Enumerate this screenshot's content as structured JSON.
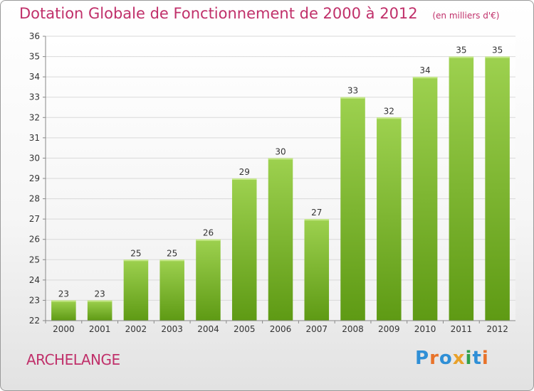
{
  "header": {
    "title": "Dotation Globale de Fonctionnement de 2000 à 2012",
    "unit": "(en milliers d'€)"
  },
  "commune": "ARCHELANGE",
  "logo": {
    "letters": [
      "P",
      "r",
      "o",
      "x",
      "i",
      "t",
      "i"
    ],
    "colors": [
      "#2f8fd6",
      "#e8732a",
      "#2f8fd6",
      "#e8a12a",
      "#2fa04a",
      "#2f8fd6",
      "#e8732a"
    ]
  },
  "colors": {
    "bar_top": "#9dd14f",
    "bar_bottom": "#5e9a14",
    "grid": "#d9d9d9",
    "axis_text": "#333333"
  },
  "chart_data": {
    "type": "bar",
    "categories": [
      "2000",
      "2001",
      "2002",
      "2003",
      "2004",
      "2005",
      "2006",
      "2007",
      "2008",
      "2009",
      "2010",
      "2011",
      "2012"
    ],
    "values": [
      23,
      23,
      25,
      25,
      26,
      29,
      30,
      27,
      33,
      32,
      34,
      35,
      35
    ],
    "data_labels": [
      "23",
      "23",
      "25",
      "25",
      "26",
      "29",
      "30",
      "27",
      "33",
      "32",
      "34",
      "35",
      "35"
    ],
    "ylim": [
      22,
      36
    ],
    "yticks": [
      "22",
      "23",
      "24",
      "25",
      "26",
      "27",
      "28",
      "29",
      "30",
      "31",
      "32",
      "33",
      "34",
      "35",
      "36"
    ],
    "grid": true
  }
}
